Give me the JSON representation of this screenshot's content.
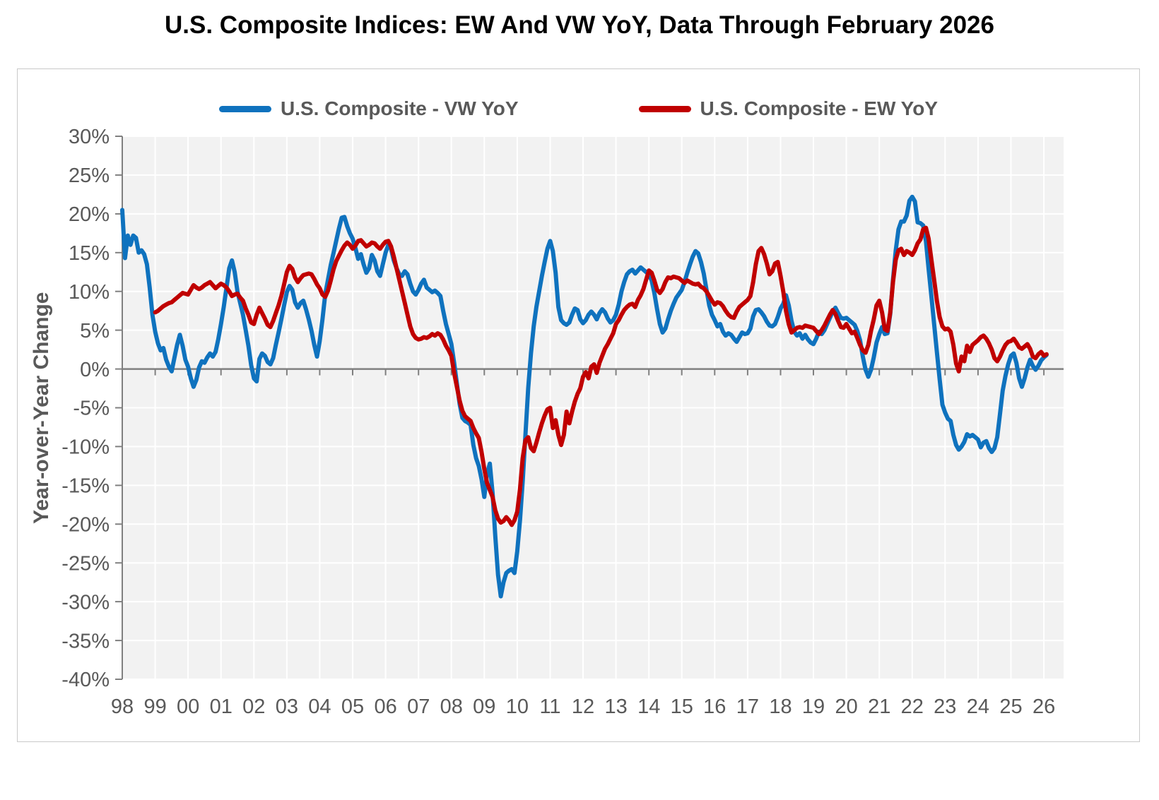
{
  "title": "U.S. Composite Indices: EW And VW YoY, Data Through February 2026",
  "legend": [
    {
      "label": "U.S. Composite - VW YoY",
      "color": "#0f72be"
    },
    {
      "label": "U.S. Composite - EW YoY",
      "color": "#c00000"
    }
  ],
  "y_axis": {
    "title": "Year-over-Year Change",
    "min": -40,
    "max": 30,
    "step": 5,
    "suffix": "%"
  },
  "x_axis": {
    "labels": [
      "98",
      "99",
      "00",
      "01",
      "02",
      "03",
      "04",
      "05",
      "06",
      "07",
      "08",
      "09",
      "10",
      "11",
      "12",
      "13",
      "14",
      "15",
      "16",
      "17",
      "18",
      "19",
      "20",
      "21",
      "22",
      "23",
      "24",
      "25",
      "26"
    ]
  },
  "colors": {
    "plot_bg": "#f2f2f2",
    "gridline": "#ffffff",
    "axis": "#808080",
    "zero_line": "#7f7f7f",
    "label": "#595959",
    "title": "#000000",
    "vw_line": "#0f72be",
    "ew_line": "#c00000"
  },
  "chart_data": {
    "type": "line",
    "title": "U.S. Composite Indices: EW And VW YoY, Data Through February 2026",
    "xlabel": "",
    "ylabel": "Year-over-Year Change",
    "ylim": [
      -40,
      30
    ],
    "x_start_year": 1998.0,
    "x_step_years": 0.0833333,
    "x_axis_min": 1998.0,
    "x_axis_max": 2026.6,
    "grid": true,
    "legend_position": "top",
    "series": [
      {
        "name": "U.S. Composite - VW YoY",
        "color": "#0f72be",
        "values": [
          20.5,
          14.3,
          17.2,
          16.0,
          17.2,
          16.9,
          15.0,
          15.3,
          14.8,
          13.5,
          10.5,
          7.0,
          4.8,
          3.3,
          2.4,
          2.7,
          1.2,
          0.3,
          -0.3,
          1.4,
          3.1,
          4.4,
          3.0,
          1.2,
          0.3,
          -1.2,
          -2.3,
          -1.4,
          0.2,
          1.0,
          0.8,
          1.5,
          2.0,
          1.6,
          2.2,
          3.8,
          5.8,
          8.0,
          10.5,
          13.0,
          14.0,
          12.5,
          10.0,
          8.5,
          7.0,
          5.0,
          3.0,
          0.5,
          -1.2,
          -1.6,
          1.3,
          2.0,
          1.7,
          0.9,
          0.6,
          1.4,
          3.1,
          4.7,
          6.4,
          8.2,
          9.9,
          10.7,
          10.2,
          8.6,
          7.9,
          8.5,
          8.8,
          7.7,
          6.4,
          4.9,
          3.1,
          1.6,
          3.6,
          6.4,
          9.6,
          11.5,
          13.4,
          14.9,
          16.5,
          18.1,
          19.5,
          19.6,
          18.4,
          17.5,
          16.8,
          15.6,
          14.2,
          14.8,
          13.5,
          12.4,
          13.0,
          14.7,
          14.0,
          12.6,
          12.0,
          13.5,
          15.0,
          16.0,
          15.5,
          14.0,
          13.0,
          12.2,
          12.0,
          12.6,
          12.2,
          11.0,
          10.0,
          9.6,
          10.2,
          11.0,
          11.5,
          10.5,
          10.2,
          9.9,
          10.1,
          9.8,
          9.4,
          7.5,
          5.8,
          4.5,
          3.2,
          0.8,
          -1.9,
          -4.5,
          -6.3,
          -6.7,
          -6.9,
          -7.2,
          -9.8,
          -11.5,
          -12.5,
          -14.2,
          -16.5,
          -13.5,
          -12.2,
          -16.0,
          -21.5,
          -26.5,
          -29.3,
          -27.5,
          -26.3,
          -26.0,
          -25.8,
          -26.3,
          -23.5,
          -19.5,
          -14.5,
          -8.5,
          -2.5,
          2.0,
          5.5,
          8.0,
          10.0,
          12.0,
          13.8,
          15.5,
          16.5,
          15.2,
          12.4,
          8.0,
          6.3,
          5.9,
          5.7,
          6.0,
          7.0,
          7.8,
          7.6,
          6.4,
          5.9,
          6.3,
          7.0,
          7.4,
          7.0,
          6.4,
          7.2,
          7.7,
          7.3,
          6.5,
          6.0,
          6.3,
          7.0,
          8.3,
          10.0,
          11.2,
          12.2,
          12.6,
          12.8,
          12.3,
          12.7,
          13.1,
          12.8,
          12.5,
          12.2,
          11.4,
          9.8,
          7.7,
          5.8,
          4.7,
          5.2,
          6.4,
          7.5,
          8.4,
          9.2,
          9.7,
          10.2,
          11.2,
          12.4,
          13.5,
          14.5,
          15.2,
          14.9,
          13.8,
          12.3,
          10.2,
          8.2,
          7.0,
          6.3,
          5.5,
          5.8,
          4.8,
          4.3,
          4.6,
          4.4,
          3.9,
          3.5,
          4.1,
          4.7,
          4.5,
          4.6,
          5.2,
          6.8,
          7.6,
          7.7,
          7.3,
          6.8,
          6.1,
          5.6,
          5.5,
          5.8,
          6.7,
          7.8,
          8.4,
          9.5,
          8.2,
          6.2,
          4.8,
          4.3,
          4.6,
          3.9,
          4.4,
          3.8,
          3.4,
          3.2,
          3.9,
          4.8,
          4.5,
          5.0,
          5.8,
          6.6,
          7.4,
          7.9,
          7.2,
          6.6,
          6.5,
          6.6,
          6.3,
          6.0,
          5.7,
          4.9,
          3.7,
          1.6,
          -0.1,
          -1.0,
          -0.1,
          1.5,
          3.4,
          4.5,
          5.4,
          4.5,
          4.6,
          7.1,
          11.5,
          15.3,
          18.0,
          19.0,
          19.0,
          19.8,
          21.7,
          22.2,
          21.6,
          18.9,
          18.8,
          18.5,
          16.5,
          12.9,
          9.4,
          5.8,
          2.2,
          -1.3,
          -4.6,
          -5.6,
          -6.4,
          -6.7,
          -8.5,
          -9.8,
          -10.4,
          -10.0,
          -9.4,
          -8.4,
          -8.7,
          -8.5,
          -8.8,
          -9.1,
          -10.1,
          -9.5,
          -9.3,
          -10.2,
          -10.7,
          -10.2,
          -8.8,
          -5.8,
          -2.8,
          -0.9,
          0.6,
          1.7,
          2.0,
          0.8,
          -1.2,
          -2.3,
          -1.2,
          0.2,
          1.2,
          0.4,
          -0.1,
          0.4,
          1.1,
          1.5,
          1.8
        ]
      },
      {
        "name": "U.S. Composite - EW YoY",
        "color": "#c00000",
        "values": [
          null,
          null,
          null,
          null,
          null,
          null,
          null,
          null,
          null,
          null,
          null,
          null,
          7.3,
          7.5,
          7.8,
          8.1,
          8.3,
          8.5,
          8.6,
          8.9,
          9.2,
          9.5,
          9.8,
          9.7,
          9.6,
          10.2,
          10.8,
          10.5,
          10.3,
          10.5,
          10.8,
          11.0,
          11.2,
          10.8,
          10.4,
          10.7,
          11.0,
          10.8,
          10.5,
          10.0,
          9.4,
          9.6,
          9.7,
          9.2,
          8.8,
          7.8,
          7.0,
          6.0,
          5.8,
          7.0,
          7.9,
          7.2,
          6.5,
          5.7,
          5.4,
          6.2,
          7.2,
          8.2,
          9.4,
          10.9,
          12.5,
          13.3,
          12.9,
          11.8,
          11.2,
          11.7,
          12.1,
          12.2,
          12.3,
          12.2,
          11.6,
          10.9,
          10.4,
          9.6,
          9.3,
          10.1,
          11.4,
          12.8,
          13.9,
          14.6,
          15.3,
          15.9,
          16.3,
          16.0,
          15.5,
          15.9,
          16.5,
          16.6,
          16.2,
          15.8,
          16.0,
          16.3,
          16.2,
          15.8,
          15.5,
          16.0,
          16.4,
          16.5,
          15.8,
          14.5,
          13.0,
          11.5,
          10.0,
          8.5,
          7.0,
          5.5,
          4.5,
          4.0,
          3.8,
          3.9,
          4.1,
          4.0,
          4.2,
          4.5,
          4.3,
          4.6,
          4.4,
          3.8,
          3.0,
          2.4,
          1.7,
          -0.5,
          -2.3,
          -4.1,
          -5.4,
          -6.1,
          -6.4,
          -6.7,
          -7.6,
          -8.3,
          -8.9,
          -10.7,
          -12.9,
          -14.7,
          -15.6,
          -16.5,
          -18.2,
          -19.3,
          -19.8,
          -19.6,
          -19.1,
          -19.5,
          -20.1,
          -19.5,
          -18.4,
          -15.5,
          -11.5,
          -9.2,
          -8.8,
          -10.2,
          -10.6,
          -9.5,
          -8.2,
          -7.0,
          -6.0,
          -5.2,
          -5.0,
          -7.6,
          -6.6,
          -8.5,
          -9.8,
          -8.5,
          -5.5,
          -7.0,
          -5.5,
          -4.2,
          -3.2,
          -2.5,
          -1.0,
          -0.4,
          -1.2,
          0.3,
          0.6,
          -0.5,
          0.8,
          1.7,
          2.6,
          3.2,
          3.9,
          4.6,
          5.8,
          6.3,
          7.0,
          7.6,
          8.0,
          8.3,
          8.4,
          8.0,
          8.9,
          9.5,
          10.3,
          11.5,
          12.7,
          12.4,
          11.4,
          10.2,
          9.8,
          10.3,
          11.2,
          11.8,
          11.7,
          11.9,
          11.8,
          11.7,
          11.4,
          11.1,
          11.4,
          11.2,
          11.0,
          10.9,
          11.0,
          10.6,
          10.4,
          10.0,
          9.4,
          8.8,
          8.3,
          8.6,
          8.5,
          8.1,
          7.5,
          7.0,
          6.7,
          6.6,
          7.4,
          8.0,
          8.3,
          8.6,
          8.9,
          9.4,
          11.2,
          13.5,
          15.2,
          15.6,
          14.8,
          13.6,
          12.2,
          12.6,
          13.6,
          13.8,
          12.0,
          10.0,
          7.5,
          5.8,
          4.7,
          5.0,
          5.3,
          5.4,
          5.3,
          5.6,
          5.5,
          5.4,
          5.3,
          4.9,
          4.5,
          5.0,
          5.6,
          6.3,
          7.0,
          7.6,
          7.1,
          6.2,
          5.4,
          5.3,
          5.8,
          5.2,
          4.6,
          4.8,
          4.0,
          3.1,
          2.4,
          2.1,
          3.1,
          4.9,
          6.4,
          8.2,
          8.8,
          7.3,
          5.1,
          4.9,
          7.3,
          11.2,
          14.1,
          15.3,
          15.5,
          14.7,
          15.2,
          15.0,
          14.7,
          15.3,
          16.2,
          16.7,
          18.0,
          18.2,
          16.8,
          14.1,
          11.5,
          8.8,
          6.7,
          5.5,
          5.1,
          5.2,
          4.8,
          3.1,
          0.7,
          -0.3,
          1.6,
          1.0,
          3.0,
          2.2,
          3.1,
          3.4,
          3.7,
          4.1,
          4.3,
          3.9,
          3.3,
          2.5,
          1.4,
          1.0,
          1.6,
          2.4,
          3.1,
          3.5,
          3.6,
          3.9,
          3.4,
          2.8,
          2.6,
          2.9,
          3.2,
          2.6,
          1.6,
          1.4,
          1.9,
          2.2,
          1.7,
          1.9
        ]
      }
    ]
  }
}
